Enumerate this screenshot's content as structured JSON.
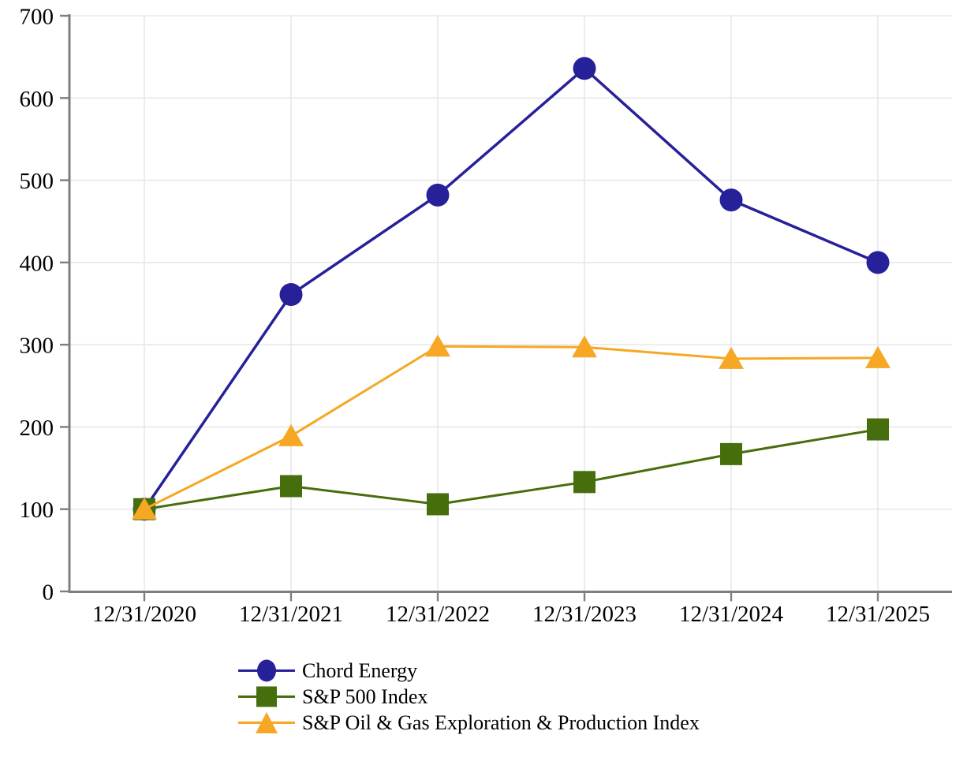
{
  "chart_data": {
    "type": "line",
    "title": "",
    "xlabel": "",
    "ylabel": "",
    "x": [
      "12/31/2020",
      "12/31/2021",
      "12/31/2022",
      "12/31/2023",
      "12/31/2024",
      "12/31/2025"
    ],
    "series": [
      {
        "name": "Chord Energy",
        "marker": "circle",
        "color": "#272199",
        "values": [
          100,
          361,
          482,
          636,
          476,
          400
        ]
      },
      {
        "name": "S&P 500 Index",
        "marker": "square",
        "color": "#466E0C",
        "values": [
          100,
          128,
          106,
          133,
          167,
          197
        ]
      },
      {
        "name": "S&P Oil & Gas Exploration & Production Index",
        "marker": "triangle",
        "color": "#F6A724",
        "values": [
          100,
          189,
          298,
          297,
          283,
          284
        ]
      }
    ],
    "ylim": [
      0,
      700
    ],
    "yticks": [
      0,
      100,
      200,
      300,
      400,
      500,
      600,
      700
    ],
    "grid": true,
    "legend_position": "bottom-left",
    "colors": {
      "axis": "#7F7F7F",
      "gridline": "#E8E8E8",
      "tick_text": "#000000",
      "background": "#FFFFFF"
    }
  }
}
